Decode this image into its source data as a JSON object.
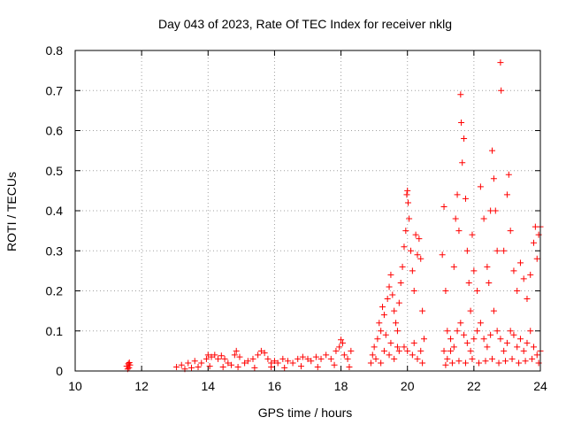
{
  "chart_data": {
    "type": "scatter",
    "title": "Day 043 of 2023, Rate Of TEC Index for receiver nklg",
    "xlabel": "GPS time / hours",
    "ylabel": "ROTI / TECUs",
    "xlim": [
      10,
      24
    ],
    "ylim": [
      0,
      0.8
    ],
    "xticks": [
      "10",
      "12",
      "14",
      "16",
      "18",
      "20",
      "22",
      "24"
    ],
    "yticks": [
      "0",
      "0.1",
      "0.2",
      "0.3",
      "0.4",
      "0.5",
      "0.6",
      "0.7",
      "0.8"
    ],
    "grid": true,
    "marker": "+",
    "color": "#ff0000",
    "points": [
      [
        11.55,
        0.012
      ],
      [
        11.6,
        0.018
      ],
      [
        11.62,
        0.008
      ],
      [
        11.65,
        0.015
      ],
      [
        11.58,
        0.005
      ],
      [
        11.63,
        0.021
      ],
      [
        13.05,
        0.01
      ],
      [
        13.2,
        0.015
      ],
      [
        13.4,
        0.02
      ],
      [
        13.6,
        0.025
      ],
      [
        13.8,
        0.02
      ],
      [
        13.95,
        0.03
      ],
      [
        14.0,
        0.04
      ],
      [
        14.1,
        0.035
      ],
      [
        14.2,
        0.04
      ],
      [
        14.3,
        0.03
      ],
      [
        14.4,
        0.038
      ],
      [
        14.5,
        0.03
      ],
      [
        14.6,
        0.02
      ],
      [
        14.7,
        0.015
      ],
      [
        14.8,
        0.04
      ],
      [
        14.85,
        0.05
      ],
      [
        14.95,
        0.035
      ],
      [
        15.1,
        0.02
      ],
      [
        15.2,
        0.025
      ],
      [
        15.35,
        0.03
      ],
      [
        15.5,
        0.04
      ],
      [
        15.6,
        0.05
      ],
      [
        15.7,
        0.045
      ],
      [
        15.8,
        0.03
      ],
      [
        15.9,
        0.02
      ],
      [
        16.0,
        0.025
      ],
      [
        16.1,
        0.02
      ],
      [
        16.25,
        0.03
      ],
      [
        16.4,
        0.025
      ],
      [
        16.55,
        0.02
      ],
      [
        16.7,
        0.03
      ],
      [
        16.85,
        0.035
      ],
      [
        17.0,
        0.03
      ],
      [
        17.1,
        0.025
      ],
      [
        17.25,
        0.035
      ],
      [
        17.4,
        0.03
      ],
      [
        17.55,
        0.04
      ],
      [
        17.7,
        0.03
      ],
      [
        17.85,
        0.05
      ],
      [
        17.95,
        0.06
      ],
      [
        18.0,
        0.078
      ],
      [
        18.05,
        0.07
      ],
      [
        18.1,
        0.04
      ],
      [
        18.2,
        0.03
      ],
      [
        18.3,
        0.05
      ],
      [
        13.3,
        0.005
      ],
      [
        13.5,
        0.008
      ],
      [
        13.7,
        0.01
      ],
      [
        14.05,
        0.012
      ],
      [
        14.45,
        0.01
      ],
      [
        14.9,
        0.01
      ],
      [
        15.4,
        0.008
      ],
      [
        15.9,
        0.01
      ],
      [
        16.3,
        0.008
      ],
      [
        16.8,
        0.012
      ],
      [
        17.3,
        0.01
      ],
      [
        17.8,
        0.015
      ],
      [
        18.25,
        0.01
      ],
      [
        18.9,
        0.02
      ],
      [
        18.95,
        0.04
      ],
      [
        19.0,
        0.06
      ],
      [
        19.1,
        0.08
      ],
      [
        19.15,
        0.12
      ],
      [
        19.2,
        0.1
      ],
      [
        19.25,
        0.16
      ],
      [
        19.3,
        0.14
      ],
      [
        19.35,
        0.09
      ],
      [
        19.4,
        0.18
      ],
      [
        19.45,
        0.21
      ],
      [
        19.5,
        0.24
      ],
      [
        19.55,
        0.19
      ],
      [
        19.6,
        0.15
      ],
      [
        19.65,
        0.12
      ],
      [
        19.7,
        0.1
      ],
      [
        19.75,
        0.17
      ],
      [
        19.8,
        0.22
      ],
      [
        19.85,
        0.26
      ],
      [
        19.9,
        0.31
      ],
      [
        19.95,
        0.35
      ],
      [
        19.98,
        0.44
      ],
      [
        20.0,
        0.45
      ],
      [
        20.02,
        0.42
      ],
      [
        20.05,
        0.38
      ],
      [
        20.1,
        0.3
      ],
      [
        20.15,
        0.25
      ],
      [
        20.2,
        0.2
      ],
      [
        20.25,
        0.34
      ],
      [
        20.3,
        0.29
      ],
      [
        20.35,
        0.33
      ],
      [
        20.4,
        0.28
      ],
      [
        20.45,
        0.15
      ],
      [
        20.5,
        0.08
      ],
      [
        19.05,
        0.03
      ],
      [
        19.2,
        0.02
      ],
      [
        19.3,
        0.05
      ],
      [
        19.45,
        0.04
      ],
      [
        19.6,
        0.03
      ],
      [
        19.75,
        0.05
      ],
      [
        19.9,
        0.06
      ],
      [
        20.0,
        0.05
      ],
      [
        20.15,
        0.04
      ],
      [
        20.3,
        0.03
      ],
      [
        20.45,
        0.02
      ],
      [
        19.5,
        0.07
      ],
      [
        19.7,
        0.06
      ],
      [
        20.2,
        0.07
      ],
      [
        20.4,
        0.05
      ],
      [
        21.05,
        0.29
      ],
      [
        21.1,
        0.41
      ],
      [
        21.15,
        0.2
      ],
      [
        21.2,
        0.1
      ],
      [
        21.3,
        0.05
      ],
      [
        21.4,
        0.26
      ],
      [
        21.45,
        0.38
      ],
      [
        21.5,
        0.44
      ],
      [
        21.55,
        0.35
      ],
      [
        21.6,
        0.69
      ],
      [
        21.62,
        0.62
      ],
      [
        21.65,
        0.52
      ],
      [
        21.7,
        0.58
      ],
      [
        21.75,
        0.43
      ],
      [
        21.8,
        0.3
      ],
      [
        21.85,
        0.22
      ],
      [
        21.9,
        0.15
      ],
      [
        21.95,
        0.34
      ],
      [
        22.0,
        0.25
      ],
      [
        22.1,
        0.2
      ],
      [
        22.2,
        0.46
      ],
      [
        22.3,
        0.38
      ],
      [
        22.4,
        0.26
      ],
      [
        22.45,
        0.22
      ],
      [
        22.5,
        0.4
      ],
      [
        22.55,
        0.55
      ],
      [
        22.6,
        0.48
      ],
      [
        22.65,
        0.4
      ],
      [
        22.7,
        0.3
      ],
      [
        22.8,
        0.77
      ],
      [
        22.82,
        0.7
      ],
      [
        22.9,
        0.3
      ],
      [
        23.0,
        0.44
      ],
      [
        23.05,
        0.49
      ],
      [
        23.1,
        0.35
      ],
      [
        23.2,
        0.25
      ],
      [
        23.3,
        0.2
      ],
      [
        23.4,
        0.27
      ],
      [
        23.5,
        0.23
      ],
      [
        23.6,
        0.18
      ],
      [
        23.7,
        0.24
      ],
      [
        23.8,
        0.32
      ],
      [
        23.85,
        0.36
      ],
      [
        23.9,
        0.28
      ],
      [
        23.95,
        0.34
      ],
      [
        24.0,
        0.36
      ],
      [
        21.1,
        0.05
      ],
      [
        21.2,
        0.03
      ],
      [
        21.3,
        0.08
      ],
      [
        21.4,
        0.06
      ],
      [
        21.5,
        0.1
      ],
      [
        21.6,
        0.12
      ],
      [
        21.7,
        0.09
      ],
      [
        21.8,
        0.07
      ],
      [
        21.9,
        0.05
      ],
      [
        22.0,
        0.08
      ],
      [
        22.1,
        0.1
      ],
      [
        22.2,
        0.12
      ],
      [
        22.3,
        0.08
      ],
      [
        22.4,
        0.06
      ],
      [
        22.5,
        0.09
      ],
      [
        22.6,
        0.15
      ],
      [
        22.7,
        0.1
      ],
      [
        22.8,
        0.08
      ],
      [
        22.9,
        0.05
      ],
      [
        23.0,
        0.07
      ],
      [
        23.1,
        0.1
      ],
      [
        23.2,
        0.09
      ],
      [
        23.3,
        0.06
      ],
      [
        23.4,
        0.08
      ],
      [
        23.5,
        0.05
      ],
      [
        23.6,
        0.07
      ],
      [
        23.7,
        0.1
      ],
      [
        23.8,
        0.06
      ],
      [
        23.9,
        0.04
      ],
      [
        24.0,
        0.05
      ],
      [
        21.15,
        0.015
      ],
      [
        21.35,
        0.02
      ],
      [
        21.55,
        0.025
      ],
      [
        21.75,
        0.02
      ],
      [
        21.95,
        0.03
      ],
      [
        22.15,
        0.02
      ],
      [
        22.35,
        0.025
      ],
      [
        22.55,
        0.03
      ],
      [
        22.75,
        0.02
      ],
      [
        22.95,
        0.025
      ],
      [
        23.15,
        0.03
      ],
      [
        23.35,
        0.02
      ],
      [
        23.55,
        0.025
      ],
      [
        23.75,
        0.03
      ],
      [
        23.95,
        0.02
      ]
    ]
  }
}
